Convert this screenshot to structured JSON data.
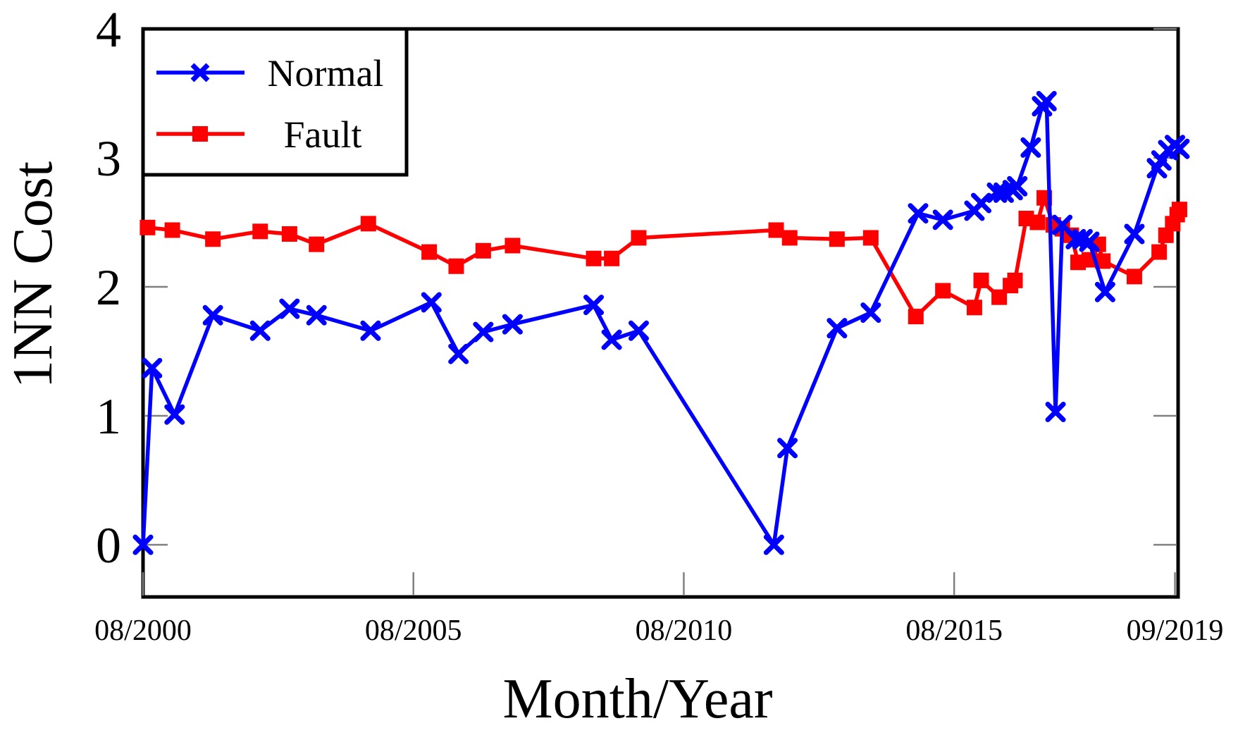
{
  "figure": {
    "background": "#ffffff",
    "axis_color": "#000000",
    "tick_color": "#808080"
  },
  "chart_data": {
    "type": "line",
    "title": "",
    "xlabel": "Month/Year",
    "ylabel": "1NN Cost",
    "x_encoding": "months since 08/2000",
    "xlim": [
      0,
      229.7
    ],
    "ylim": [
      -0.404,
      4.0
    ],
    "grid": false,
    "legend_position": "top-left",
    "yticks": [
      {
        "value": 0,
        "label": "0"
      },
      {
        "value": 1,
        "label": "1"
      },
      {
        "value": 2,
        "label": "2"
      },
      {
        "value": 3,
        "label": "3"
      },
      {
        "value": 4,
        "label": "4"
      }
    ],
    "xticks": [
      {
        "value": 0,
        "label": "08/2000"
      },
      {
        "value": 60,
        "label": "08/2005"
      },
      {
        "value": 120,
        "label": "08/2010"
      },
      {
        "value": 180,
        "label": "08/2015"
      },
      {
        "value": 229,
        "label": "09/2019"
      }
    ],
    "series": [
      {
        "name": "Normal",
        "color": "#0000ff",
        "marker": "x",
        "points": [
          [
            0,
            0.0
          ],
          [
            2,
            1.37
          ],
          [
            7,
            1.01
          ],
          [
            15.5,
            1.78
          ],
          [
            26,
            1.66
          ],
          [
            32.5,
            1.83
          ],
          [
            38.5,
            1.78
          ],
          [
            50.5,
            1.66
          ],
          [
            64,
            1.88
          ],
          [
            70,
            1.48
          ],
          [
            75.5,
            1.65
          ],
          [
            82,
            1.71
          ],
          [
            100,
            1.86
          ],
          [
            104,
            1.59
          ],
          [
            110,
            1.66
          ],
          [
            140,
            0.0
          ],
          [
            143,
            0.75
          ],
          [
            154,
            1.68
          ],
          [
            161.5,
            1.8
          ],
          [
            172,
            2.57
          ],
          [
            177.5,
            2.52
          ],
          [
            184.5,
            2.59
          ],
          [
            186,
            2.65
          ],
          [
            189.5,
            2.73
          ],
          [
            191,
            2.73
          ],
          [
            193,
            2.75
          ],
          [
            194,
            2.78
          ],
          [
            197,
            3.08
          ],
          [
            199.5,
            3.4
          ],
          [
            200.5,
            3.44
          ],
          [
            202.5,
            1.03
          ],
          [
            204,
            2.48
          ],
          [
            207,
            2.37
          ],
          [
            208.5,
            2.37
          ],
          [
            210,
            2.35
          ],
          [
            213.5,
            1.96
          ],
          [
            220,
            2.41
          ],
          [
            225,
            2.92
          ],
          [
            226,
            2.98
          ],
          [
            227.5,
            3.06
          ],
          [
            229,
            3.1
          ],
          [
            230,
            3.07
          ]
        ]
      },
      {
        "name": "Fault",
        "color": "#ff0000",
        "marker": "square",
        "points": [
          [
            1,
            2.46
          ],
          [
            6.5,
            2.44
          ],
          [
            15.5,
            2.37
          ],
          [
            26,
            2.43
          ],
          [
            32.5,
            2.41
          ],
          [
            38.5,
            2.33
          ],
          [
            50,
            2.49
          ],
          [
            63.5,
            2.27
          ],
          [
            69.5,
            2.16
          ],
          [
            75.5,
            2.28
          ],
          [
            82,
            2.32
          ],
          [
            100,
            2.22
          ],
          [
            104,
            2.22
          ],
          [
            110,
            2.38
          ],
          [
            140.5,
            2.44
          ],
          [
            143.5,
            2.38
          ],
          [
            154,
            2.37
          ],
          [
            161.5,
            2.38
          ],
          [
            171.5,
            1.77
          ],
          [
            177.5,
            1.97
          ],
          [
            184.5,
            1.84
          ],
          [
            186,
            2.05
          ],
          [
            190,
            1.92
          ],
          [
            192.5,
            2.01
          ],
          [
            193.5,
            2.05
          ],
          [
            196,
            2.53
          ],
          [
            198.5,
            2.5
          ],
          [
            200,
            2.69
          ],
          [
            202,
            2.48
          ],
          [
            204,
            2.45
          ],
          [
            206,
            2.4
          ],
          [
            207.5,
            2.19
          ],
          [
            210,
            2.21
          ],
          [
            212,
            2.33
          ],
          [
            213,
            2.2
          ],
          [
            220,
            2.08
          ],
          [
            225.5,
            2.27
          ],
          [
            227,
            2.4
          ],
          [
            228.5,
            2.49
          ],
          [
            229.5,
            2.56
          ],
          [
            230,
            2.6
          ]
        ]
      }
    ]
  }
}
